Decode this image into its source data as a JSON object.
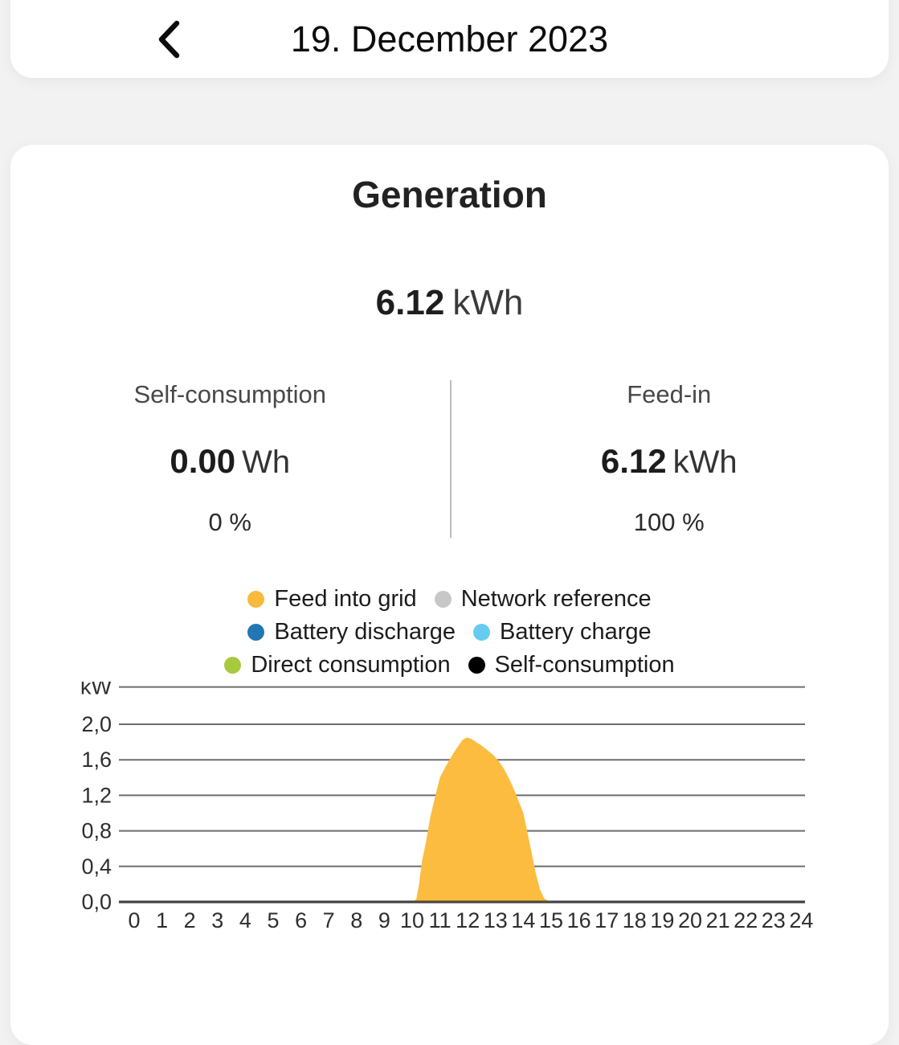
{
  "header": {
    "title": "19. December 2023",
    "back_icon": "chevron-left"
  },
  "card": {
    "title": "Generation",
    "total": {
      "value": "6.12",
      "unit": "kWh"
    },
    "stats": {
      "left": {
        "label": "Self-consumption",
        "value": "0.00",
        "unit": "Wh",
        "percent": "0 %"
      },
      "right": {
        "label": "Feed-in",
        "value": "6.12",
        "unit": "kWh",
        "percent": "100 %"
      }
    }
  },
  "legend": {
    "items": [
      {
        "label": "Feed into grid",
        "color": "#F8B93C"
      },
      {
        "label": "Network reference",
        "color": "#C7C7C7"
      },
      {
        "label": "Battery discharge",
        "color": "#2077B4"
      },
      {
        "label": "Battery charge",
        "color": "#66CBF1"
      },
      {
        "label": "Direct consumption",
        "color": "#A6C93D"
      },
      {
        "label": "Self-consumption",
        "color": "#000000"
      }
    ]
  },
  "chart_data": {
    "type": "area",
    "ylabel": "kW",
    "ylim": [
      0,
      2.42
    ],
    "xlim": [
      0,
      24
    ],
    "grid": true,
    "legend_position": "top",
    "y_ticks": [
      {
        "label": "2,0",
        "value": 2.0
      },
      {
        "label": "1,6",
        "value": 1.6
      },
      {
        "label": "1,2",
        "value": 1.2
      },
      {
        "label": "0,8",
        "value": 0.8
      },
      {
        "label": "0,4",
        "value": 0.4
      },
      {
        "label": "0,0",
        "value": 0.0
      }
    ],
    "x_ticks": [
      "0",
      "1",
      "2",
      "3",
      "4",
      "5",
      "6",
      "7",
      "8",
      "9",
      "10",
      "11",
      "12",
      "13",
      "14",
      "15",
      "16",
      "17",
      "18",
      "19",
      "20",
      "21",
      "22",
      "23",
      "24"
    ],
    "series": [
      {
        "name": "Feed into grid",
        "color": "#FBBC40",
        "unit": "kW",
        "points": [
          [
            0,
            0
          ],
          [
            2,
            0
          ],
          [
            4,
            0
          ],
          [
            6,
            0
          ],
          [
            8,
            0
          ],
          [
            9,
            0
          ],
          [
            10.0,
            0
          ],
          [
            10.15,
            0.03
          ],
          [
            10.25,
            0.2
          ],
          [
            10.35,
            0.45
          ],
          [
            10.5,
            0.68
          ],
          [
            10.65,
            0.95
          ],
          [
            10.8,
            1.15
          ],
          [
            11.0,
            1.4
          ],
          [
            11.2,
            1.52
          ],
          [
            11.4,
            1.63
          ],
          [
            11.6,
            1.73
          ],
          [
            11.8,
            1.82
          ],
          [
            11.95,
            1.85
          ],
          [
            12.1,
            1.84
          ],
          [
            12.3,
            1.8
          ],
          [
            12.5,
            1.76
          ],
          [
            12.7,
            1.71
          ],
          [
            12.9,
            1.66
          ],
          [
            13.1,
            1.59
          ],
          [
            13.3,
            1.5
          ],
          [
            13.5,
            1.38
          ],
          [
            13.7,
            1.24
          ],
          [
            13.9,
            1.08
          ],
          [
            14.0,
            1.0
          ],
          [
            14.15,
            0.78
          ],
          [
            14.3,
            0.55
          ],
          [
            14.45,
            0.32
          ],
          [
            14.6,
            0.14
          ],
          [
            14.75,
            0.04
          ],
          [
            14.9,
            0.01
          ],
          [
            15.1,
            0
          ],
          [
            16,
            0
          ],
          [
            18,
            0
          ],
          [
            20,
            0
          ],
          [
            22,
            0
          ],
          [
            24,
            0
          ]
        ]
      }
    ]
  }
}
